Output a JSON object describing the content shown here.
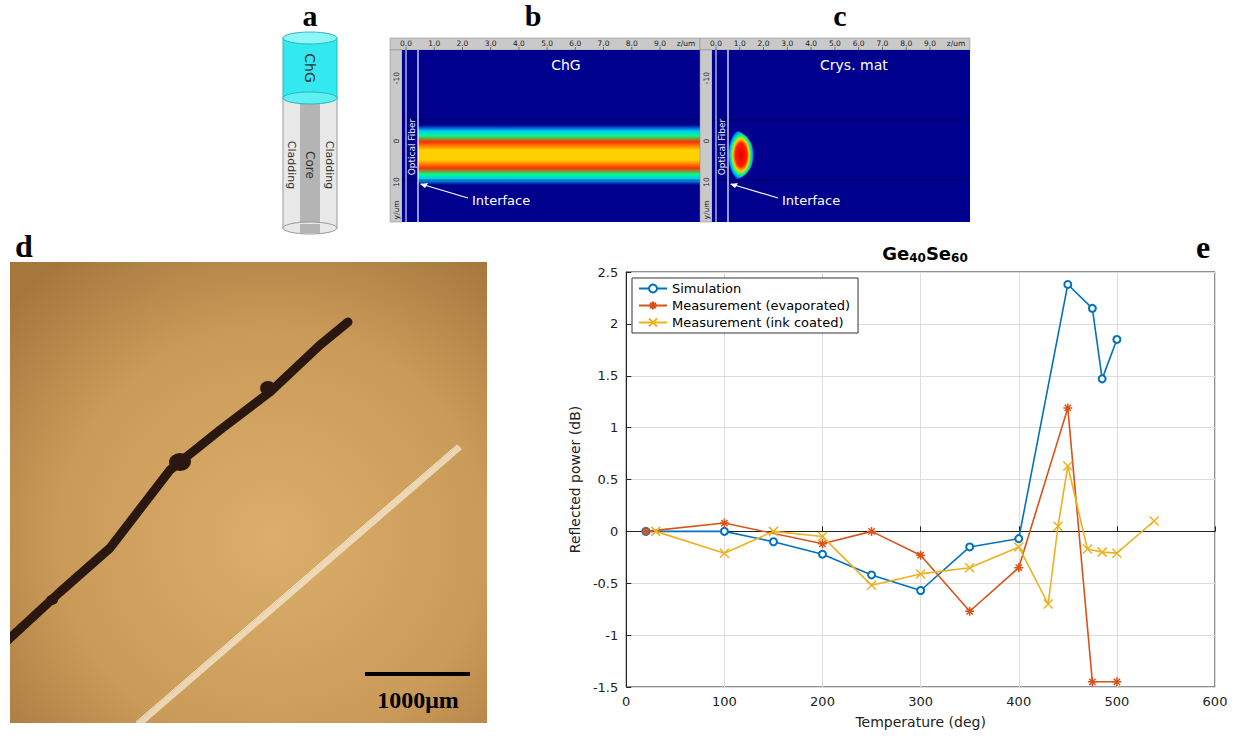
{
  "panels": {
    "a": {
      "letter": "a",
      "top": "ChG",
      "cladding_left": "Cladding",
      "core": "Core",
      "cladding_right": "Cladding"
    },
    "b": {
      "letter": "b",
      "z_ticks": [
        "0.0",
        "1.0",
        "2.0",
        "3.0",
        "4.0",
        "5.0",
        "6.0",
        "7.0",
        "8.0",
        "9.0"
      ],
      "z_unit": "z/um",
      "y_ticks": [
        "-10",
        "0",
        "10"
      ],
      "y_unit": "y/um",
      "fiber": "Optical Fiber",
      "medium": "ChG",
      "interface": "Interface"
    },
    "c": {
      "letter": "c",
      "z_ticks": [
        "0.0",
        "1.0",
        "2.0",
        "3.0",
        "4.0",
        "5.0",
        "6.0",
        "7.0",
        "8.0",
        "9.0"
      ],
      "z_unit": "z/um",
      "y_ticks": [
        "-10",
        "0",
        "10"
      ],
      "y_unit": "y/um",
      "fiber": "Optical Fiber",
      "medium": "Crys. mat",
      "interface": "Interface"
    },
    "d": {
      "letter": "d",
      "scale_bar": "1000μm"
    },
    "e": {
      "letter": "e"
    }
  },
  "chart_data": {
    "type": "line",
    "title": "Ge40Se60",
    "x_label": "Temperature (deg)",
    "y_label": "Reflected power (dB)",
    "xlim": [
      0,
      600
    ],
    "xticks": [
      0,
      100,
      200,
      300,
      400,
      500,
      600
    ],
    "ylim": [
      -1.5,
      2.5
    ],
    "yticks": [
      -1.5,
      -1,
      -0.5,
      0,
      0.5,
      1,
      1.5,
      2,
      2.5
    ],
    "grid": true,
    "legend": "top-left",
    "series": [
      {
        "name": "Simulation",
        "color": "#0072BD",
        "marker": "circle",
        "x": [
          20,
          100,
          150,
          200,
          250,
          300,
          350,
          400,
          450,
          475,
          485,
          500
        ],
        "values": [
          0,
          0,
          -0.1,
          -0.22,
          -0.42,
          -0.57,
          -0.15,
          -0.07,
          2.38,
          2.15,
          1.47,
          1.85
        ]
      },
      {
        "name": "Measurement (evaporated)",
        "color": "#D95319",
        "marker": "star",
        "x": [
          20,
          100,
          200,
          250,
          300,
          350,
          400,
          450,
          475,
          500
        ],
        "values": [
          0,
          0.08,
          -0.12,
          0,
          -0.23,
          -0.77,
          -0.35,
          1.19,
          -1.45,
          -1.45
        ]
      },
      {
        "name": "Measurement (ink coated)",
        "color": "#EDB120",
        "marker": "x",
        "x": [
          30,
          100,
          150,
          200,
          250,
          300,
          350,
          400,
          430,
          440,
          450,
          470,
          485,
          500,
          538
        ],
        "values": [
          0,
          -0.21,
          0,
          -0.05,
          -0.52,
          -0.41,
          -0.35,
          -0.15,
          -0.7,
          0.05,
          0.63,
          -0.17,
          -0.2,
          -0.21,
          0.1
        ]
      }
    ]
  }
}
